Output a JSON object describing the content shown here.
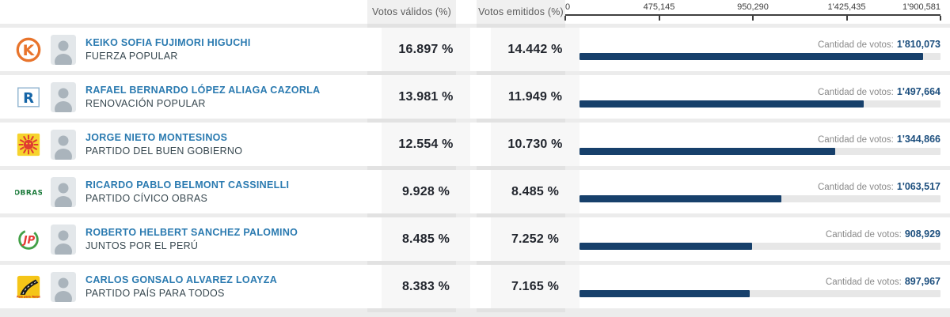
{
  "columns": {
    "valid_label": "Votos válidos (%)",
    "emitted_label": "Votos emitidos (%)"
  },
  "axis": {
    "max": 1900581,
    "ticks": [
      "0",
      "475,145",
      "950,290",
      "1'425,435",
      "1'900,581"
    ]
  },
  "bars": {
    "votes_label": "Cantidad de votos:",
    "bar_color": "#17406b",
    "track_color": "#e7e7e7",
    "value_color": "#1d4f7e"
  },
  "colors": {
    "candidate_name": "#2a7ab0",
    "party_name": "#37474f",
    "percent_text": "#22262e",
    "header_bg": "#f0f0f0",
    "divider_bg": "#ececec"
  },
  "rows": [
    {
      "name": "KEIKO SOFIA FUJIMORI HIGUCHI",
      "party": "FUERZA POPULAR",
      "valid_pct": "16.897 %",
      "emitted_pct": "14.442 %",
      "votes": "1'810,073",
      "votes_num": 1810073,
      "logo": "fp",
      "logo_name": "fuerza-popular-logo"
    },
    {
      "name": "RAFAEL BERNARDO LÓPEZ ALIAGA CAZORLA",
      "party": "RENOVACIÓN POPULAR",
      "valid_pct": "13.981 %",
      "emitted_pct": "11.949 %",
      "votes": "1'497,664",
      "votes_num": 1497664,
      "logo": "rp",
      "logo_name": "renovacion-popular-logo"
    },
    {
      "name": "JORGE NIETO MONTESINOS",
      "party": "PARTIDO DEL BUEN GOBIERNO",
      "valid_pct": "12.554 %",
      "emitted_pct": "10.730 %",
      "votes": "1'344,866",
      "votes_num": 1344866,
      "logo": "pbg",
      "logo_name": "partido-del-buen-gobierno-logo"
    },
    {
      "name": "RICARDO PABLO BELMONT CASSINELLI",
      "party": "PARTIDO CÍVICO OBRAS",
      "valid_pct": "9.928 %",
      "emitted_pct": "8.485 %",
      "votes": "1'063,517",
      "votes_num": 1063517,
      "logo": "obras",
      "logo_name": "partido-civico-obras-logo"
    },
    {
      "name": "ROBERTO HELBERT SANCHEZ PALOMINO",
      "party": "JUNTOS POR EL PERÚ",
      "valid_pct": "8.485 %",
      "emitted_pct": "7.252 %",
      "votes": "908,929",
      "votes_num": 908929,
      "logo": "jp",
      "logo_name": "juntos-por-el-peru-logo"
    },
    {
      "name": "CARLOS GONSALO ALVAREZ LOAYZA",
      "party": "PARTIDO PAÍS PARA TODOS",
      "valid_pct": "8.383 %",
      "emitted_pct": "7.165 %",
      "votes": "897,967",
      "votes_num": 897967,
      "logo": "ppt",
      "logo_name": "pais-para-todos-logo"
    }
  ],
  "chart_data": {
    "type": "bar",
    "orientation": "horizontal",
    "categories": [
      "KEIKO SOFIA FUJIMORI HIGUCHI (FUERZA POPULAR)",
      "RAFAEL BERNARDO LÓPEZ ALIAGA CAZORLA (RENOVACIÓN POPULAR)",
      "JORGE NIETO MONTESINOS (PARTIDO DEL BUEN GOBIERNO)",
      "RICARDO PABLO BELMONT CASSINELLI (PARTIDO CÍVICO OBRAS)",
      "ROBERTO HELBERT SANCHEZ PALOMINO (JUNTOS POR EL PERÚ)",
      "CARLOS GONSALO ALVAREZ LOAYZA (PARTIDO PAÍS PARA TODOS)"
    ],
    "series": [
      {
        "name": "Votos válidos (%)",
        "values": [
          16.897,
          13.981,
          12.554,
          9.928,
          8.485,
          8.383
        ]
      },
      {
        "name": "Votos emitidos (%)",
        "values": [
          14.442,
          11.949,
          10.73,
          8.485,
          7.252,
          7.165
        ]
      },
      {
        "name": "Cantidad de votos",
        "values": [
          1810073,
          1497664,
          1344866,
          1063517,
          908929,
          897967
        ]
      }
    ],
    "xlim": [
      0,
      1900581
    ],
    "x_ticks": [
      0,
      475145,
      950290,
      1425435,
      1900581
    ],
    "grid": false,
    "legend_position": "none"
  }
}
